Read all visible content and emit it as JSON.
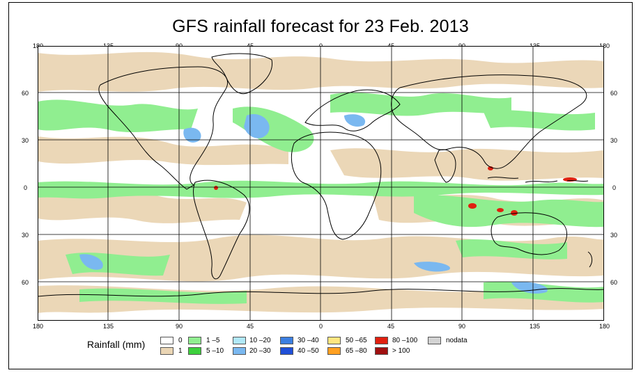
{
  "title": "GFS rainfall forecast for 23 Feb. 2013",
  "longitude_ticks_top": [
    "180",
    "135",
    "90",
    "45",
    "0",
    "45",
    "90",
    "135",
    "180"
  ],
  "longitude_ticks_bottom": [
    "180",
    "135",
    "90",
    "45",
    "0",
    "45",
    "90",
    "135",
    "180"
  ],
  "latitude_ticks_left": [
    "60",
    "30",
    "0",
    "30",
    "60"
  ],
  "latitude_ticks_right": [
    "60",
    "30",
    "0",
    "30",
    "60"
  ],
  "legend": {
    "title": "Rainfall (mm)",
    "items": [
      {
        "label": "0",
        "color": "#ffffff"
      },
      {
        "label": "1",
        "color": "#ead5b4"
      },
      {
        "label": "1 –5",
        "color": "#90ee90"
      },
      {
        "label": "5 –10",
        "color": "#3cd03c"
      },
      {
        "label": "10 –20",
        "color": "#b0e8f8"
      },
      {
        "label": "20 –30",
        "color": "#7ab8f0"
      },
      {
        "label": "30 –40",
        "color": "#3c7fe0"
      },
      {
        "label": "40 –50",
        "color": "#1f4fd8"
      },
      {
        "label": "50 –65",
        "color": "#ffe680"
      },
      {
        "label": "65 –80",
        "color": "#ffa020"
      },
      {
        "label": "80 –100",
        "color": "#e02010"
      },
      {
        "label": "> 100",
        "color": "#a01010"
      },
      {
        "label": "nodata",
        "color": "#d3d3d3"
      }
    ]
  }
}
